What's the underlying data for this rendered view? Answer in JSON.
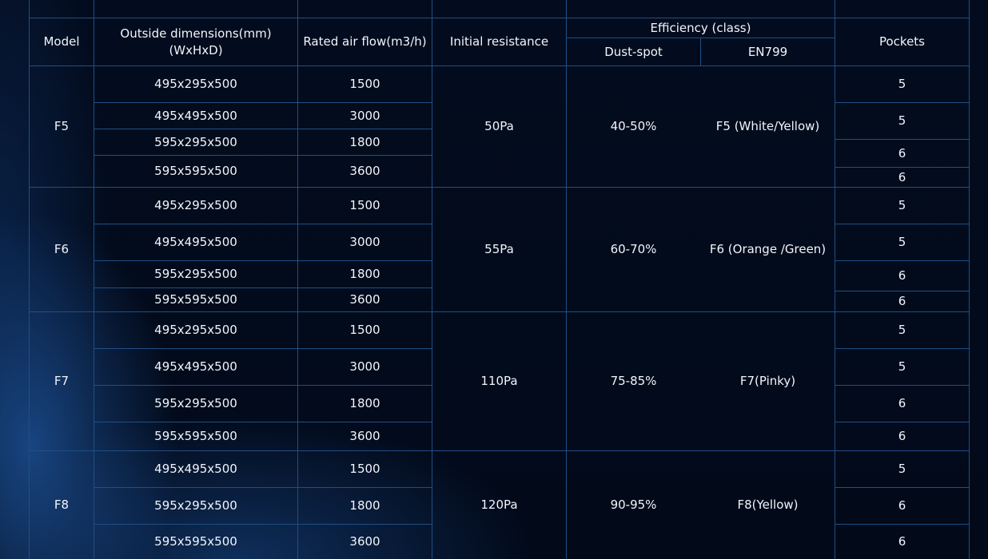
{
  "table": {
    "headers": {
      "model": "Model",
      "dimensions_line1": "Outside dimensions(mm)",
      "dimensions_line2": "(WxHxD)",
      "air_flow": "Rated air flow(m3/h)",
      "resistance": "Initial resistance",
      "efficiency": "Efficiency (class)",
      "dust_spot": "Dust-spot",
      "en799": "EN799",
      "pockets": "Pockets"
    },
    "groups": [
      {
        "model": "F5",
        "resistance": "50Pa",
        "dust_spot": "40-50%",
        "en799": "F5 (White/Yellow)",
        "rows": [
          {
            "dimensions": "495x295x500",
            "air_flow": "1500"
          },
          {
            "dimensions": "495x495x500",
            "air_flow": "3000"
          },
          {
            "dimensions": "595x295x500",
            "air_flow": "1800"
          },
          {
            "dimensions": "595x595x500",
            "air_flow": "3600"
          }
        ],
        "pockets": [
          "5",
          "5",
          "6",
          "6"
        ]
      },
      {
        "model": "F6",
        "resistance": "55Pa",
        "dust_spot": "60-70%",
        "en799": "F6 (Orange /Green)",
        "rows": [
          {
            "dimensions": "495x295x500",
            "air_flow": "1500"
          },
          {
            "dimensions": "495x495x500",
            "air_flow": "3000"
          },
          {
            "dimensions": "595x295x500",
            "air_flow": "1800"
          },
          {
            "dimensions": "595x595x500",
            "air_flow": "3600"
          }
        ],
        "pockets": [
          "5",
          "5",
          "6",
          "6"
        ]
      },
      {
        "model": "F7",
        "resistance": "110Pa",
        "dust_spot": "75-85%",
        "en799": "F7(Pinky)",
        "rows": [
          {
            "dimensions": "495x295x500",
            "air_flow": "1500"
          },
          {
            "dimensions": "495x495x500",
            "air_flow": "3000"
          },
          {
            "dimensions": "595x295x500",
            "air_flow": "1800"
          },
          {
            "dimensions": "595x595x500",
            "air_flow": "3600"
          }
        ],
        "pockets": [
          "5",
          "5",
          "6",
          "6"
        ]
      },
      {
        "model": "F8",
        "resistance": "120Pa",
        "dust_spot": "90-95%",
        "en799": "F8(Yellow)",
        "rows": [
          {
            "dimensions": "495x495x500",
            "air_flow": "1500"
          },
          {
            "dimensions": "595x295x500",
            "air_flow": "1800"
          },
          {
            "dimensions": "595x595x500",
            "air_flow": "3600"
          }
        ],
        "pockets": [
          "5",
          "6",
          "6"
        ]
      }
    ]
  }
}
